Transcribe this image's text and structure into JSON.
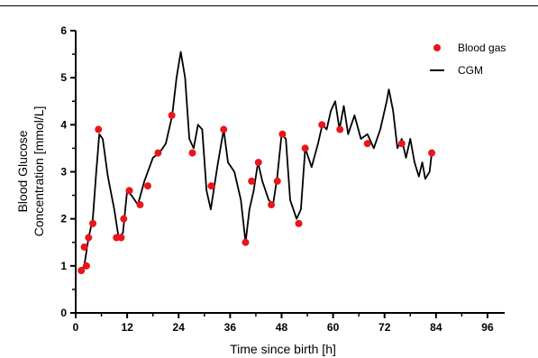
{
  "chart_data": {
    "type": "line",
    "title": "",
    "xlabel": "Time since birth [h]",
    "ylabel_lines": [
      "Blood Glucose",
      "Concentration [mmol/L]"
    ],
    "xlim": [
      0,
      100
    ],
    "ylim": [
      0,
      6
    ],
    "x_ticks": [
      "0",
      "12",
      "24",
      "36",
      "48",
      "60",
      "72",
      "84",
      "96"
    ],
    "y_ticks": [
      "0",
      "1",
      "2",
      "3",
      "4",
      "5",
      "6"
    ],
    "legend": {
      "position": "top-right",
      "entries": [
        "Blood gas",
        "CGM"
      ]
    },
    "colors": {
      "blood_gas": "#e8161b",
      "cgm": "#000000"
    },
    "series": [
      {
        "name": "Blood gas",
        "kind": "scatter",
        "x": [
          1.3,
          2.0,
          2.5,
          3.0,
          4.0,
          5.3,
          9.5,
          10.6,
          11.2,
          12.5,
          15.0,
          16.8,
          19.2,
          22.4,
          27.2,
          31.6,
          34.5,
          39.6,
          41.0,
          42.6,
          45.6,
          47.0,
          48.2,
          52.0,
          53.5,
          57.4,
          61.6,
          68.0,
          76.0,
          83.0
        ],
        "y": [
          0.9,
          1.4,
          1.0,
          1.6,
          1.9,
          3.9,
          1.6,
          1.6,
          2.0,
          2.6,
          2.3,
          2.7,
          3.4,
          4.2,
          3.4,
          2.7,
          3.9,
          1.5,
          2.8,
          3.2,
          2.3,
          2.8,
          3.8,
          1.9,
          3.5,
          4.0,
          3.9,
          3.6,
          3.6,
          3.4
        ]
      },
      {
        "name": "CGM",
        "kind": "line",
        "points": [
          [
            1,
            0.9
          ],
          [
            2,
            1.0
          ],
          [
            3,
            1.6
          ],
          [
            4,
            2.0
          ],
          [
            4.8,
            3.0
          ],
          [
            5.5,
            3.8
          ],
          [
            6.3,
            3.7
          ],
          [
            7.5,
            2.9
          ],
          [
            9,
            2.2
          ],
          [
            10,
            1.6
          ],
          [
            11,
            1.7
          ],
          [
            12,
            2.6
          ],
          [
            13,
            2.5
          ],
          [
            14.5,
            2.3
          ],
          [
            16,
            2.8
          ],
          [
            18,
            3.3
          ],
          [
            19.5,
            3.4
          ],
          [
            21,
            3.6
          ],
          [
            22.5,
            4.2
          ],
          [
            23.5,
            5.0
          ],
          [
            24.5,
            5.55
          ],
          [
            25.5,
            5.0
          ],
          [
            26.5,
            3.7
          ],
          [
            27.5,
            3.5
          ],
          [
            28.5,
            4.0
          ],
          [
            29.5,
            3.9
          ],
          [
            30.5,
            2.6
          ],
          [
            31.5,
            2.2
          ],
          [
            33,
            3.1
          ],
          [
            34.5,
            3.9
          ],
          [
            35.5,
            3.2
          ],
          [
            37,
            3.0
          ],
          [
            38.5,
            2.4
          ],
          [
            39.6,
            1.5
          ],
          [
            40.5,
            2.2
          ],
          [
            41.5,
            2.6
          ],
          [
            42.5,
            3.2
          ],
          [
            43.5,
            2.8
          ],
          [
            45,
            2.4
          ],
          [
            46,
            2.3
          ],
          [
            47,
            2.9
          ],
          [
            48,
            3.8
          ],
          [
            49,
            3.7
          ],
          [
            50,
            2.4
          ],
          [
            51.5,
            2.0
          ],
          [
            52.5,
            2.2
          ],
          [
            53.5,
            3.5
          ],
          [
            55,
            3.1
          ],
          [
            56.5,
            3.6
          ],
          [
            57.5,
            4.0
          ],
          [
            58.5,
            3.9
          ],
          [
            59.5,
            4.3
          ],
          [
            60.5,
            4.5
          ],
          [
            61.5,
            3.9
          ],
          [
            62.5,
            4.4
          ],
          [
            63.5,
            3.8
          ],
          [
            65,
            4.2
          ],
          [
            66.5,
            3.7
          ],
          [
            68,
            3.8
          ],
          [
            69.5,
            3.5
          ],
          [
            71,
            3.9
          ],
          [
            72.5,
            4.5
          ],
          [
            73,
            4.75
          ],
          [
            74,
            4.3
          ],
          [
            75,
            3.5
          ],
          [
            76,
            3.7
          ],
          [
            77,
            3.3
          ],
          [
            78,
            3.7
          ],
          [
            79,
            3.2
          ],
          [
            80,
            2.9
          ],
          [
            80.8,
            3.2
          ],
          [
            81.5,
            2.85
          ],
          [
            82.5,
            3.0
          ],
          [
            83,
            3.4
          ]
        ]
      }
    ]
  }
}
